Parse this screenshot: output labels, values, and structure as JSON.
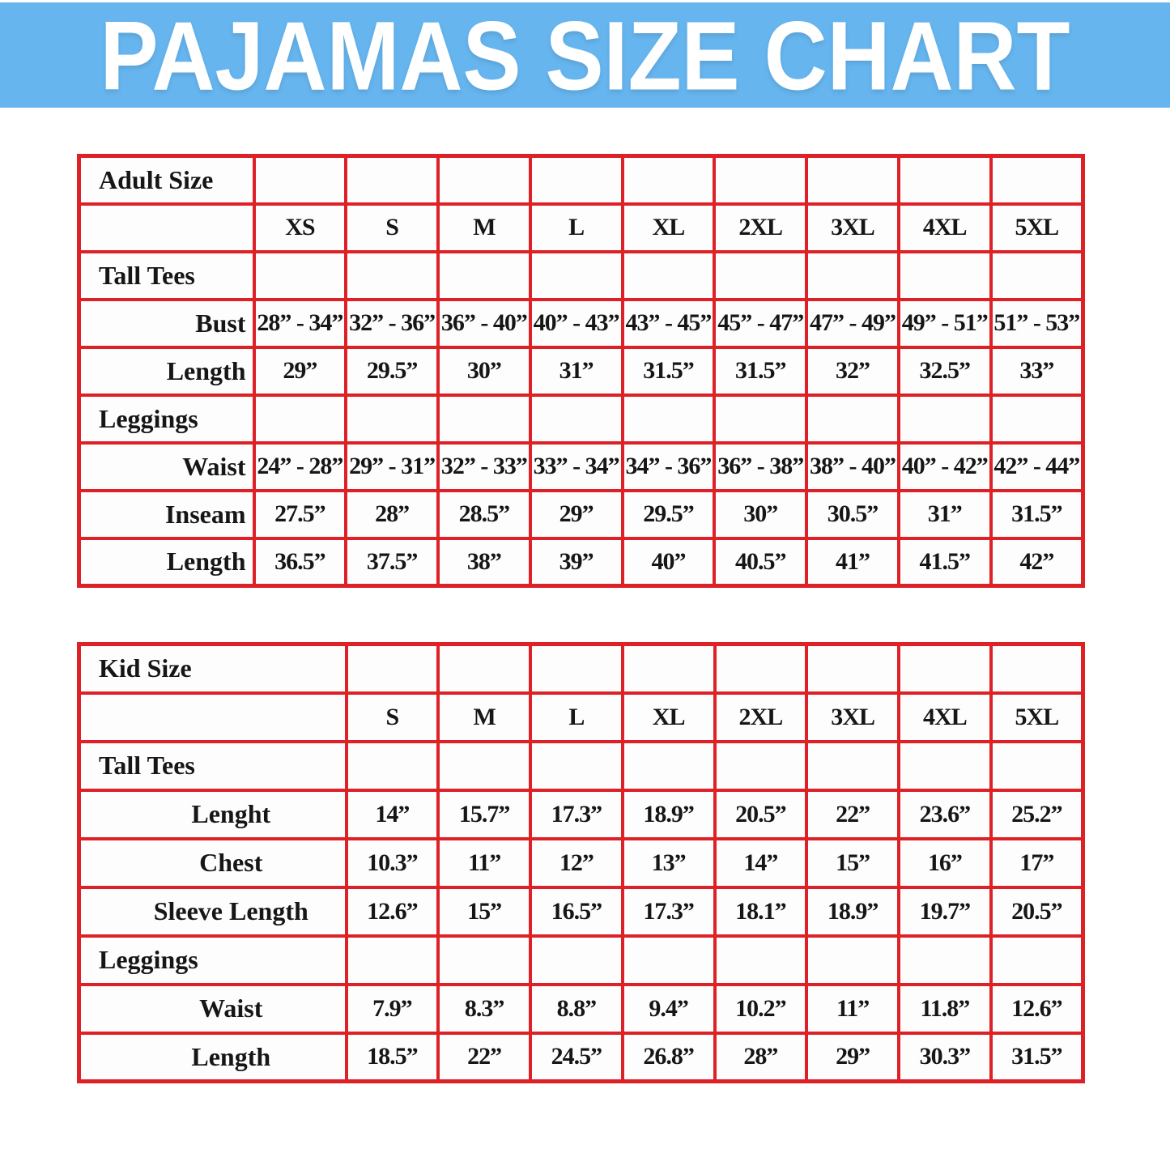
{
  "banner": {
    "title": "PAJAMAS SIZE CHART"
  },
  "colors": {
    "banner_bg": "#66B5EF",
    "title_color": "#FFFFFF",
    "table_border": "#DE2126",
    "text": "#161616"
  },
  "tables": {
    "adult": {
      "title": "Adult Size",
      "sizes": [
        "XS",
        "S",
        "M",
        "L",
        "XL",
        "2XL",
        "3XL",
        "4XL",
        "5XL"
      ],
      "sections": [
        {
          "label": "Tall Tees",
          "rows": [
            {
              "label": "Bust",
              "values": [
                "28” - 34”",
                "32” - 36”",
                "36” - 40”",
                "40” - 43”",
                "43” - 45”",
                "45” - 47”",
                "47” - 49”",
                "49” - 51”",
                "51” - 53”"
              ]
            },
            {
              "label": "Length",
              "values": [
                "29”",
                "29.5”",
                "30”",
                "31”",
                "31.5”",
                "31.5”",
                "32”",
                "32.5”",
                "33”"
              ]
            }
          ]
        },
        {
          "label": "Leggings",
          "rows": [
            {
              "label": "Waist",
              "values": [
                "24” - 28”",
                "29” - 31”",
                "32” - 33”",
                "33” - 34”",
                "34” - 36”",
                "36” - 38”",
                "38” - 40”",
                "40” - 42”",
                "42” - 44”"
              ]
            },
            {
              "label": "Inseam",
              "values": [
                "27.5”",
                "28”",
                "28.5”",
                "29”",
                "29.5”",
                "30”",
                "30.5”",
                "31”",
                "31.5”"
              ]
            },
            {
              "label": "Length",
              "values": [
                "36.5”",
                "37.5”",
                "38”",
                "39”",
                "40”",
                "40.5”",
                "41”",
                "41.5”",
                "42”"
              ]
            }
          ]
        }
      ]
    },
    "kid": {
      "title": "Kid Size",
      "sizes": [
        "S",
        "M",
        "L",
        "XL",
        "2XL",
        "3XL",
        "4XL",
        "5XL"
      ],
      "sections": [
        {
          "label": "Tall Tees",
          "rows": [
            {
              "label": "Lenght",
              "values": [
                "14”",
                "15.7”",
                "17.3”",
                "18.9”",
                "20.5”",
                "22”",
                "23.6”",
                "25.2”"
              ]
            },
            {
              "label": "Chest",
              "values": [
                "10.3”",
                "11”",
                "12”",
                "13”",
                "14”",
                "15”",
                "16”",
                "17”"
              ]
            },
            {
              "label": "Sleeve Length",
              "values": [
                "12.6”",
                "15”",
                "16.5”",
                "17.3”",
                "18.1”",
                "18.9”",
                "19.7”",
                "20.5”"
              ]
            }
          ]
        },
        {
          "label": "Leggings",
          "rows": [
            {
              "label": "Waist",
              "values": [
                "7.9”",
                "8.3”",
                "8.8”",
                "9.4”",
                "10.2”",
                "11”",
                "11.8”",
                "12.6”"
              ]
            },
            {
              "label": "Length",
              "values": [
                "18.5”",
                "22”",
                "24.5”",
                "26.8”",
                "28”",
                "29”",
                "30.3”",
                "31.5”"
              ]
            }
          ]
        }
      ]
    }
  }
}
